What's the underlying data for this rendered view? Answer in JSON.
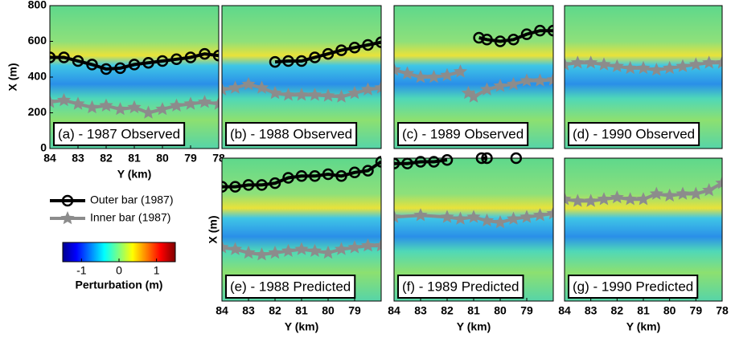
{
  "chart_data": [
    {
      "type": "line",
      "title": "(a) - 1987 Observed",
      "x_label": "Y (km)",
      "y_label": "X (m)",
      "xlim": [
        84,
        78
      ],
      "xticks": [
        84,
        83,
        82,
        81,
        80,
        79,
        78
      ],
      "ylim": [
        0,
        800
      ],
      "yticks": [
        0,
        200,
        400,
        600,
        800
      ],
      "series": [
        {
          "color": "#000000",
          "marker": "circle",
          "x": [
            84,
            83.5,
            83,
            82.5,
            82,
            81.5,
            81,
            80.5,
            80,
            79.5,
            79,
            78.5,
            78
          ],
          "values": [
            510,
            510,
            490,
            470,
            445,
            450,
            470,
            480,
            490,
            500,
            510,
            530,
            520
          ]
        },
        {
          "color": "#8c8c8c",
          "marker": "star",
          "x": [
            84,
            83.5,
            83,
            82.5,
            82,
            81.5,
            81,
            80.5,
            80,
            79.5,
            79,
            78.5,
            78
          ],
          "values": [
            260,
            270,
            250,
            230,
            240,
            220,
            230,
            200,
            220,
            240,
            250,
            260,
            250
          ]
        }
      ]
    },
    {
      "type": "line",
      "title": "(b) - 1988 Observed",
      "xlim": [
        84,
        78
      ],
      "ylim": [
        0,
        800
      ],
      "series": [
        {
          "color": "#000000",
          "marker": "circle",
          "x": [
            82,
            81.5,
            81,
            80.5,
            80,
            79.5,
            79,
            78.5,
            78
          ],
          "values": [
            485,
            490,
            490,
            510,
            530,
            550,
            565,
            580,
            595
          ]
        },
        {
          "color": "#8c8c8c",
          "marker": "star",
          "x": [
            84,
            83.5,
            83,
            82.5,
            82,
            81.5,
            81,
            80.5,
            80,
            79.5,
            79,
            78.5,
            78
          ],
          "values": [
            330,
            340,
            360,
            340,
            310,
            300,
            300,
            300,
            295,
            290,
            310,
            330,
            340
          ]
        }
      ]
    },
    {
      "type": "line",
      "title": "(c) - 1989 Observed",
      "xlim": [
        84,
        78
      ],
      "ylim": [
        0,
        800
      ],
      "series": [
        {
          "color": "#000000",
          "marker": "circle",
          "x": [
            80.8,
            80.5,
            80,
            79.5,
            79,
            78.5,
            78
          ],
          "values": [
            620,
            610,
            600,
            610,
            640,
            660,
            660
          ]
        },
        {
          "color": "#8c8c8c",
          "marker": "star",
          "x": [
            84,
            83.5,
            83,
            82.5,
            82,
            81.5,
            81.3,
            81.2,
            81,
            80.5,
            80,
            79.5,
            79,
            78.5,
            78
          ],
          "values": [
            440,
            420,
            400,
            400,
            410,
            430,
            null,
            310,
            290,
            330,
            350,
            360,
            380,
            380,
            385
          ]
        }
      ]
    },
    {
      "type": "line",
      "title": "(d) - 1990 Observed",
      "xlim": [
        84,
        78
      ],
      "ylim": [
        0,
        800
      ],
      "series": [
        {
          "color": "#8c8c8c",
          "marker": "star",
          "x": [
            84,
            83.5,
            83,
            82.5,
            82,
            81.5,
            81,
            80.5,
            80,
            79.5,
            79,
            78.5,
            78
          ],
          "values": [
            470,
            480,
            480,
            470,
            460,
            450,
            450,
            440,
            450,
            460,
            470,
            480,
            480
          ]
        }
      ]
    },
    {
      "type": "line",
      "title": "(e) - 1988 Predicted",
      "x_label": "Y (km)",
      "y_label": "X (m)",
      "xlim": [
        84,
        78
      ],
      "xticks": [
        84,
        83,
        82,
        81,
        80,
        79
      ],
      "ylim": [
        0,
        800
      ],
      "series": [
        {
          "color": "#000000",
          "marker": "circle",
          "x": [
            84,
            83.5,
            83,
            82.5,
            82,
            81.5,
            81,
            80.5,
            80,
            79.5,
            79,
            78.5,
            78
          ],
          "values": [
            640,
            640,
            650,
            650,
            660,
            690,
            700,
            700,
            710,
            700,
            720,
            730,
            780
          ]
        },
        {
          "color": "#8c8c8c",
          "marker": "star",
          "x": [
            84,
            83.5,
            83,
            82.5,
            82,
            81.5,
            81,
            80.5,
            80,
            79.5,
            79,
            78.5,
            78
          ],
          "values": [
            300,
            290,
            270,
            260,
            270,
            280,
            290,
            280,
            270,
            290,
            300,
            310,
            310
          ]
        }
      ]
    },
    {
      "type": "line",
      "title": "(f) - 1989 Predicted",
      "x_label": "Y (km)",
      "xlim": [
        84,
        78
      ],
      "xticks": [
        84,
        83,
        82,
        81,
        80,
        79
      ],
      "ylim": [
        0,
        800
      ],
      "series": [
        {
          "color": "#000000",
          "marker": "circle",
          "x": [
            84,
            83.5,
            83,
            82.5,
            82,
            81.5,
            80.7,
            80.5,
            80,
            79.4
          ],
          "values": [
            770,
            770,
            780,
            780,
            790,
            null,
            800,
            800,
            null,
            800
          ]
        },
        {
          "color": "#8c8c8c",
          "marker": "star",
          "x": [
            84,
            83,
            82,
            81.5,
            81,
            80.5,
            80,
            79.5,
            79,
            78.5,
            78
          ],
          "values": [
            470,
            480,
            470,
            460,
            470,
            450,
            440,
            460,
            470,
            480,
            490
          ]
        }
      ]
    },
    {
      "type": "line",
      "title": "(g) - 1990 Predicted",
      "x_label": "Y (km)",
      "xlim": [
        84,
        78
      ],
      "xticks": [
        84,
        83,
        82,
        81,
        80,
        79,
        78
      ],
      "ylim": [
        0,
        800
      ],
      "series": [
        {
          "color": "#8c8c8c",
          "marker": "star",
          "x": [
            84,
            83.5,
            83,
            82.5,
            82,
            81.5,
            81,
            80.5,
            80,
            79.5,
            79,
            78.5,
            78
          ],
          "values": [
            570,
            560,
            560,
            570,
            580,
            570,
            570,
            600,
            590,
            600,
            600,
            620,
            660
          ]
        }
      ]
    }
  ],
  "legend": [
    {
      "name": "Outer bar (1987)",
      "color": "#000000",
      "marker": "circle"
    },
    {
      "name": "Inner bar (1987)",
      "color": "#8c8c8c",
      "marker": "star"
    }
  ],
  "colorbar": {
    "label": "Perturbation (m)",
    "clim": [
      -1.5,
      1.5
    ],
    "ticks": [
      -1,
      0,
      1
    ]
  }
}
